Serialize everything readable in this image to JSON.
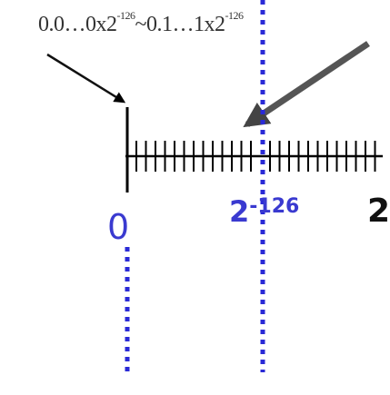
{
  "annotation": {
    "left": {
      "base": "0.0…0x2",
      "exp": "-126"
    },
    "sep": "~",
    "right": {
      "base": "0.1…1x2",
      "exp": "-126"
    }
  },
  "labels": {
    "zero": "0",
    "subnormal": {
      "base": "2",
      "exp": "-126"
    },
    "next": "2"
  },
  "colors": {
    "axis": "#000000",
    "guide": "#2a2ad6",
    "arrow_dark": "#555555",
    "text": "#333333"
  }
}
